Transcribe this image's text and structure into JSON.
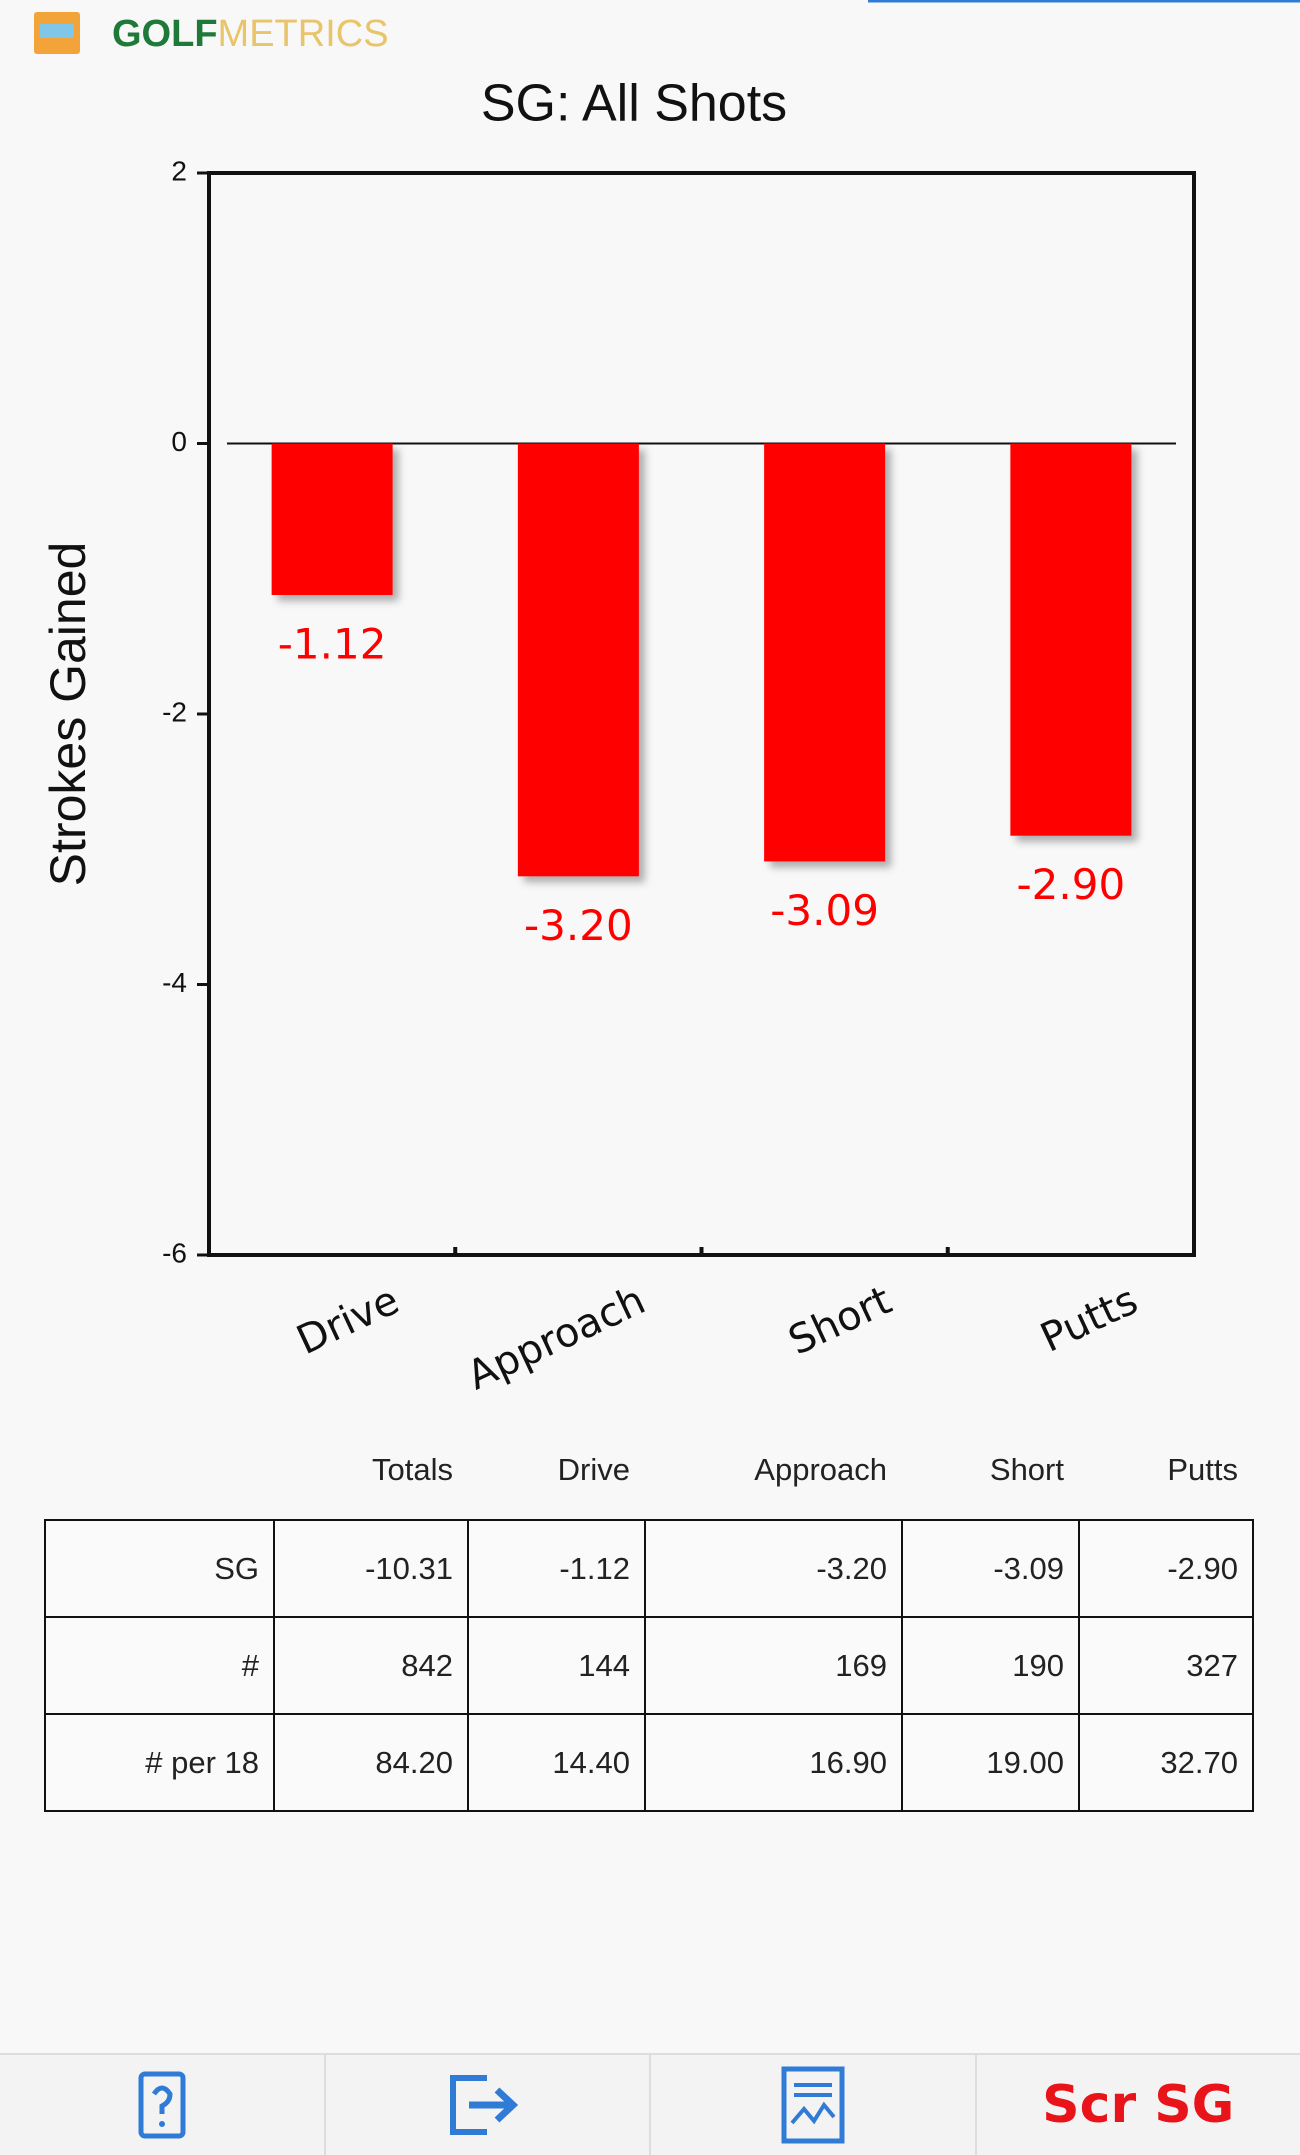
{
  "app": {
    "brand_a": "GOLF",
    "brand_b": "METRICS"
  },
  "chart_data": {
    "type": "bar",
    "title": "SG: All Shots",
    "y_label": "Strokes Gained",
    "categories": [
      "Drive",
      "Approach",
      "Short",
      "Putts"
    ],
    "values": [
      -1.12,
      -3.2,
      -3.09,
      -2.9
    ],
    "value_labels": [
      "-1.12",
      "-3.20",
      "-3.09",
      "-2.90"
    ],
    "color": "#ff0000",
    "ylim": [
      -6,
      2
    ],
    "yticks": [
      2,
      0,
      -2,
      -4,
      -6
    ]
  },
  "table": {
    "columns": [
      "Totals",
      "Drive",
      "Approach",
      "Short",
      "Putts"
    ],
    "rows": [
      {
        "label": "SG",
        "cells": [
          "-10.31",
          "-1.12",
          "-3.20",
          "-3.09",
          "-2.90"
        ]
      },
      {
        "label": "#",
        "cells": [
          "842",
          "144",
          "169",
          "190",
          "327"
        ]
      },
      {
        "label": "# per 18",
        "cells": [
          "84.20",
          "14.40",
          "16.90",
          "19.00",
          "32.70"
        ]
      }
    ]
  },
  "nav": {
    "score_sg": "Scr SG"
  }
}
